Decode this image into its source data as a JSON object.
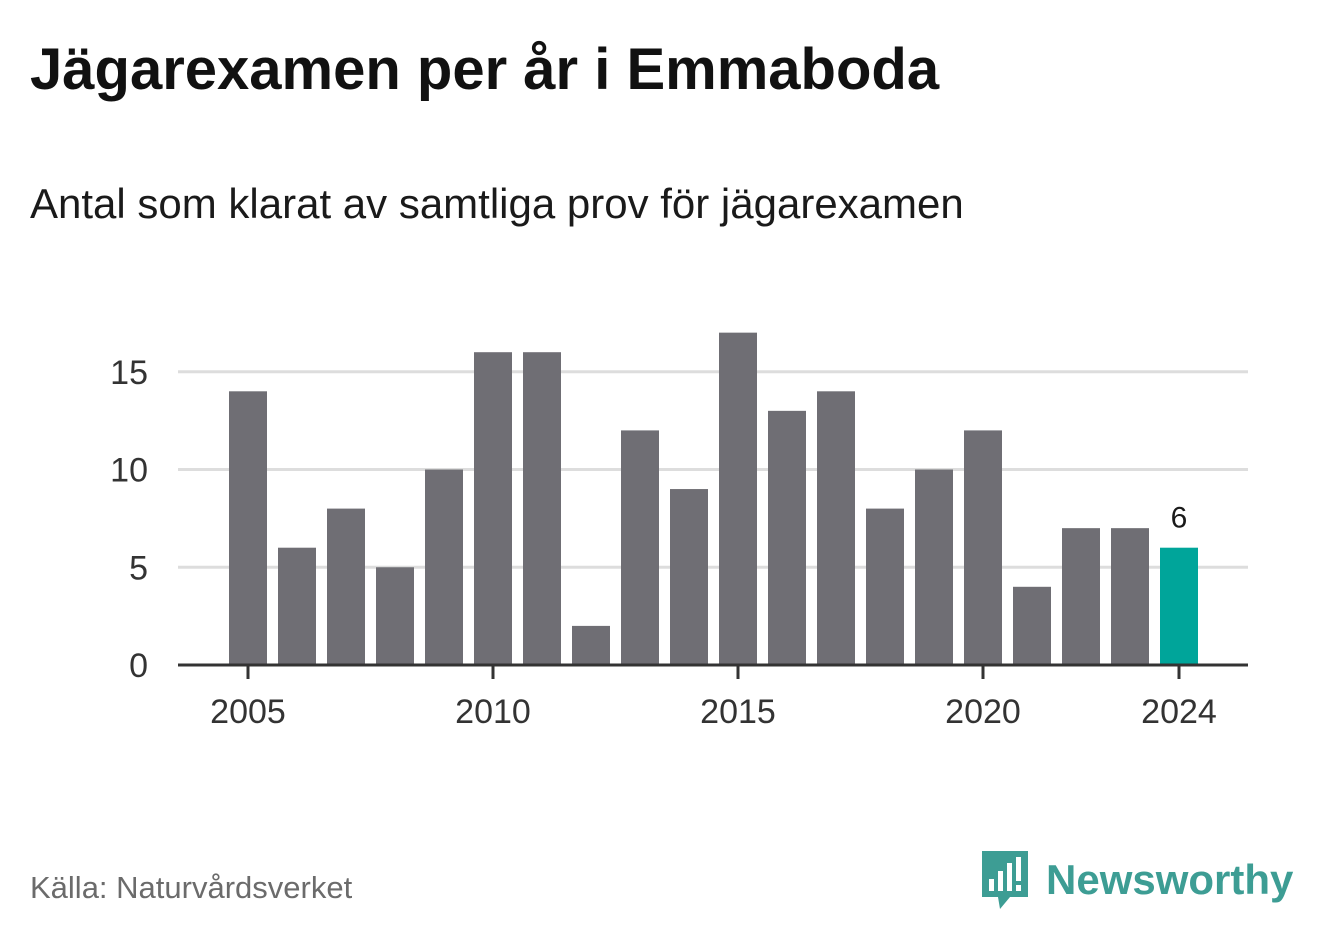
{
  "title": "Jägarexamen per år i Emmaboda",
  "subtitle": "Antal som klarat av samtliga prov för jägarexamen",
  "source": "Källa: Naturvårdsverket",
  "brand": "Newsworthy",
  "colors": {
    "bar": "#6f6e74",
    "highlight": "#00a59a",
    "grid": "#dddddd",
    "axis": "#333333",
    "brand": "#3d9d94"
  },
  "chart_data": {
    "type": "bar",
    "categories": [
      "2005",
      "2006",
      "2007",
      "2008",
      "2009",
      "2010",
      "2011",
      "2012",
      "2013",
      "2014",
      "2015",
      "2016",
      "2017",
      "2018",
      "2019",
      "2020",
      "2021",
      "2022",
      "2023",
      "2024"
    ],
    "values": [
      14,
      6,
      8,
      5,
      10,
      16,
      16,
      2,
      12,
      9,
      17,
      13,
      14,
      8,
      10,
      12,
      4,
      7,
      7,
      6
    ],
    "highlight_index": 19,
    "value_label": "6",
    "x_tick_labels": [
      "2005",
      "2010",
      "2015",
      "2020",
      "2024"
    ],
    "y_ticks": [
      0,
      5,
      10,
      15
    ],
    "ylim": [
      0,
      17
    ],
    "grid": true,
    "xlabel": "",
    "ylabel": ""
  }
}
